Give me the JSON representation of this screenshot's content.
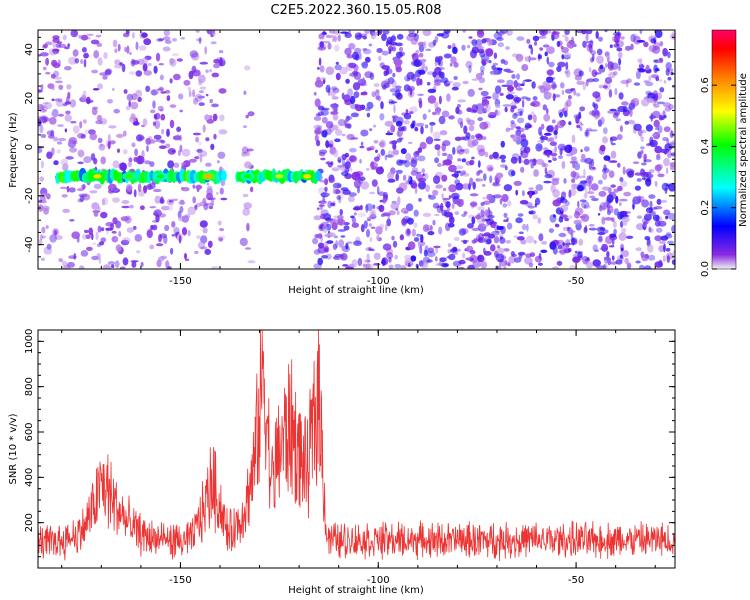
{
  "title": "C2E5.2022.360.15.05.R08",
  "chart_data": [
    {
      "type": "heatmap",
      "title": "C2E5.2022.360.15.05.R08",
      "xlabel": "Height of straight line (km)",
      "ylabel": "Frequency (Hz)",
      "xlim": [
        -186,
        -25
      ],
      "ylim": [
        -50,
        48
      ],
      "xticks": [
        -150,
        -100,
        -50
      ],
      "yticks": [
        -40,
        -20,
        0,
        20,
        40
      ],
      "colorbar": {
        "label": "Normalized spectral amplitude",
        "ticks": [
          0.0,
          0.2,
          0.4,
          0.6
        ],
        "tick_labels": [
          "0.0",
          "0.2",
          "0.4",
          "0.6"
        ],
        "range": [
          0,
          0.78
        ]
      },
      "features": [
        {
          "name": "signal band",
          "x_range": [
            -181,
            -115
          ],
          "frequency_hz": -12,
          "peak_amplitude": 0.75
        },
        {
          "name": "empty gap",
          "x_range": [
            -139,
            -134
          ]
        },
        {
          "name": "empty gap",
          "x_range": [
            -132,
            -116
          ]
        },
        {
          "name": "noise region",
          "x_range": [
            -115,
            -25
          ]
        }
      ]
    },
    {
      "type": "line",
      "xlabel": "Height of straight line (km)",
      "ylabel": "SNR (10 * v/v)",
      "xlim": [
        -186,
        -25
      ],
      "ylim": [
        0,
        1050
      ],
      "xticks": [
        -150,
        -100,
        -50
      ],
      "yticks": [
        200,
        400,
        600,
        800,
        1000
      ],
      "series": [
        {
          "name": "SNR",
          "color": "#ee3333",
          "x": [
            -186,
            -180,
            -175,
            -172,
            -170,
            -168,
            -166,
            -163,
            -160,
            -157,
            -153,
            -150,
            -147,
            -144,
            -142,
            -140,
            -138,
            -135,
            -132,
            -130,
            -129,
            -128,
            -127,
            -125,
            -122,
            -120,
            -118,
            -116,
            -115,
            -113,
            -110,
            -100,
            -90,
            -80,
            -70,
            -60,
            -50,
            -40,
            -30,
            -25
          ],
          "values": [
            130,
            140,
            180,
            300,
            420,
            380,
            300,
            220,
            170,
            150,
            140,
            130,
            150,
            300,
            440,
            320,
            170,
            230,
            420,
            760,
            1040,
            700,
            420,
            600,
            720,
            560,
            480,
            760,
            900,
            150,
            140,
            140,
            140,
            140,
            140,
            140,
            140,
            140,
            140,
            140
          ]
        }
      ]
    }
  ],
  "colors": {
    "line": "#ee3333",
    "frame": "#000000"
  }
}
